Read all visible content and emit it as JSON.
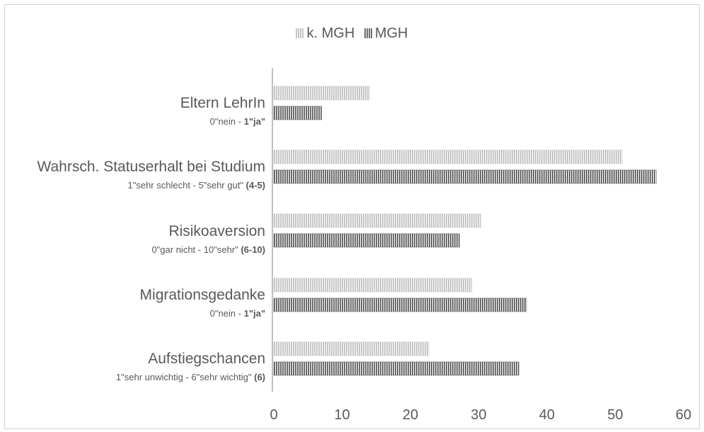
{
  "chart_data": {
    "type": "bar",
    "orientation": "horizontal",
    "legend": [
      "k. MGH",
      "MGH"
    ],
    "legend_position": "top",
    "categories": [
      {
        "label": "Eltern LehrIn",
        "sub": "0\"nein - ",
        "sub_bold": "1\"ja\""
      },
      {
        "label": "Wahrsch. Statuserhalt bei Studium",
        "sub": "1\"sehr schlecht - 5\"sehr gut\" ",
        "sub_bold": "(4-5)"
      },
      {
        "label": "Risikoaversion",
        "sub": "0\"gar nicht - 10\"sehr\" ",
        "sub_bold": "(6-10)"
      },
      {
        "label": "Migrationsgedanke",
        "sub": "0\"nein - ",
        "sub_bold": "1\"ja\""
      },
      {
        "label": "Aufstiegschancen",
        "sub": "1\"sehr unwichtig - 6\"sehr wichtig\" ",
        "sub_bold": "(6)"
      }
    ],
    "series": [
      {
        "name": "k. MGH",
        "values": [
          14,
          51,
          30.3,
          29,
          22.7
        ]
      },
      {
        "name": "MGH",
        "values": [
          7,
          56,
          27.2,
          37,
          35.9
        ]
      }
    ],
    "xlim": [
      0,
      60
    ],
    "xticks": [
      "0",
      "10",
      "20",
      "30",
      "40",
      "50",
      "60"
    ],
    "grid": false
  },
  "colors": {
    "k_mgh": "#c6c6c6",
    "mgh": "#6b6b6b",
    "text": "#595959",
    "axis": "#bfbfbf"
  }
}
